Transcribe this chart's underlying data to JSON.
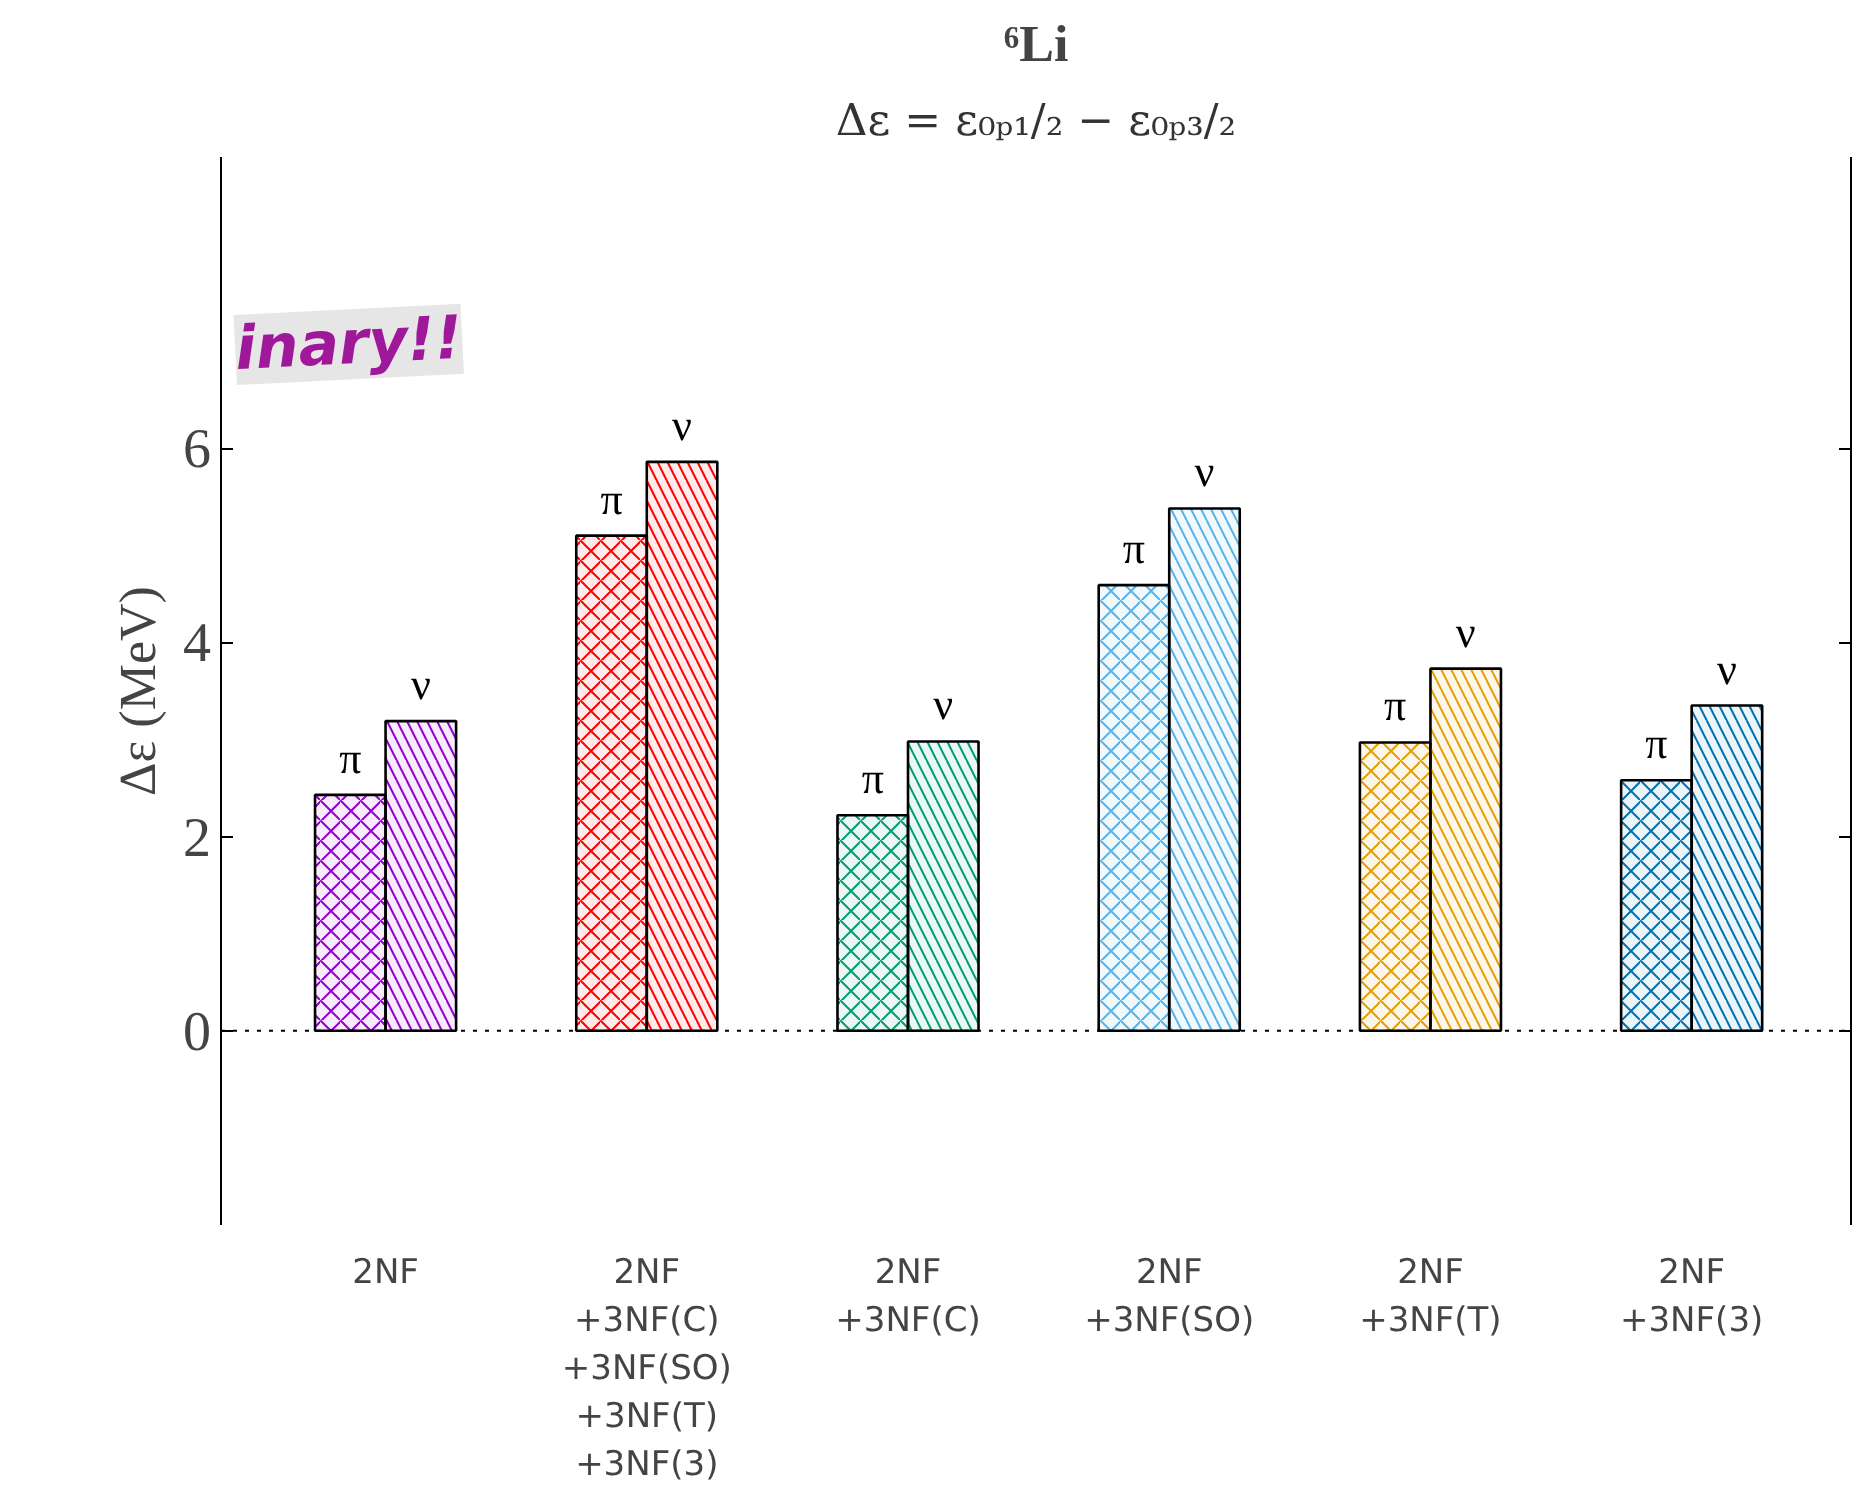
{
  "chart_data": {
    "type": "bar",
    "title": "⁶Li",
    "subtitle": "Δε = ε₀ₚ₁/₂ − ε₀ₚ₃/₂",
    "ylabel": "Δε (MeV)",
    "categories": [
      "2NF",
      "2NF\n+3NF(C)\n+3NF(SO)\n+3NF(T)\n+3NF(3)",
      "2NF\n+3NF(C)",
      "2NF\n+3NF(SO)",
      "2NF\n+3NF(T)",
      "2NF\n+3NF(3)"
    ],
    "series": [
      {
        "name": "π",
        "colors": [
          "#9400d3",
          "#ff0000",
          "#009e73",
          "#56b4e9",
          "#e69f00",
          "#0072b2"
        ],
        "values": [
          2.43,
          5.1,
          2.22,
          4.59,
          2.97,
          2.58
        ]
      },
      {
        "name": "ν",
        "colors": [
          "#9400d3",
          "#ff0000",
          "#009e73",
          "#56b4e9",
          "#e69f00",
          "#0072b2"
        ],
        "values": [
          3.19,
          5.86,
          2.98,
          5.38,
          3.73,
          3.35
        ]
      }
    ],
    "ylim": [
      -2,
      9
    ],
    "yticks": [
      0,
      2,
      4,
      6
    ],
    "ref_lines": [
      {
        "axis": "y",
        "value": 0,
        "line_style": "dotted",
        "color": "#000000"
      }
    ],
    "annotations": [
      "inary!!"
    ],
    "grid": false
  }
}
